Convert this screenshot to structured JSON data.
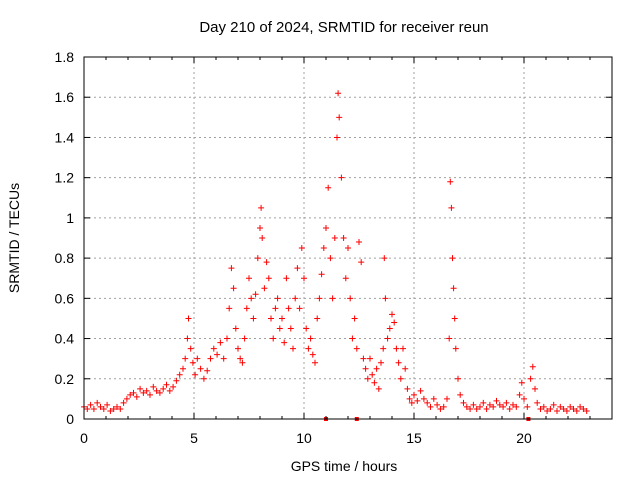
{
  "chart_data": {
    "type": "scatter",
    "title": "Day 210 of 2024, SRMTID for receiver reun",
    "xlabel": "GPS time / hours",
    "ylabel": "SRMTID / TECUs",
    "xlim": [
      0,
      24
    ],
    "ylim": [
      0,
      1.8
    ],
    "xticks": [
      0,
      5,
      10,
      15,
      20
    ],
    "xtick_labels": [
      "0",
      "5",
      "10",
      "15",
      "20"
    ],
    "yticks": [
      0,
      0.2,
      0.4,
      0.6,
      0.8,
      1.0,
      1.2,
      1.4,
      1.6,
      1.8
    ],
    "ytick_labels": [
      "0",
      "0.2",
      "0.4",
      "0.6",
      "0.8",
      "1",
      "1.2",
      "1.4",
      "1.6",
      "1.8"
    ],
    "grid": true,
    "marker": "+",
    "series_color": "#ff0000",
    "data_gaps_x": [
      11.0,
      12.4,
      20.2
    ],
    "series": [
      {
        "name": "SRMTID",
        "points": [
          [
            0.0,
            0.06
          ],
          [
            0.15,
            0.05
          ],
          [
            0.3,
            0.07
          ],
          [
            0.45,
            0.05
          ],
          [
            0.6,
            0.08
          ],
          [
            0.75,
            0.06
          ],
          [
            0.9,
            0.05
          ],
          [
            1.05,
            0.07
          ],
          [
            1.2,
            0.04
          ],
          [
            1.35,
            0.05
          ],
          [
            1.5,
            0.06
          ],
          [
            1.65,
            0.05
          ],
          [
            1.8,
            0.08
          ],
          [
            1.95,
            0.1
          ],
          [
            2.1,
            0.12
          ],
          [
            2.25,
            0.13
          ],
          [
            2.4,
            0.11
          ],
          [
            2.55,
            0.15
          ],
          [
            2.7,
            0.13
          ],
          [
            2.85,
            0.14
          ],
          [
            3.0,
            0.12
          ],
          [
            3.15,
            0.16
          ],
          [
            3.3,
            0.14
          ],
          [
            3.45,
            0.13
          ],
          [
            3.6,
            0.15
          ],
          [
            3.75,
            0.17
          ],
          [
            3.9,
            0.14
          ],
          [
            4.05,
            0.16
          ],
          [
            4.2,
            0.19
          ],
          [
            4.35,
            0.22
          ],
          [
            4.5,
            0.25
          ],
          [
            4.6,
            0.3
          ],
          [
            4.7,
            0.4
          ],
          [
            4.75,
            0.5
          ],
          [
            4.85,
            0.35
          ],
          [
            4.95,
            0.28
          ],
          [
            5.05,
            0.22
          ],
          [
            5.15,
            0.3
          ],
          [
            5.3,
            0.25
          ],
          [
            5.45,
            0.2
          ],
          [
            5.6,
            0.24
          ],
          [
            5.75,
            0.3
          ],
          [
            5.9,
            0.35
          ],
          [
            6.05,
            0.32
          ],
          [
            6.2,
            0.38
          ],
          [
            6.35,
            0.3
          ],
          [
            6.5,
            0.4
          ],
          [
            6.6,
            0.55
          ],
          [
            6.7,
            0.75
          ],
          [
            6.8,
            0.65
          ],
          [
            6.9,
            0.45
          ],
          [
            7.0,
            0.35
          ],
          [
            7.1,
            0.3
          ],
          [
            7.2,
            0.28
          ],
          [
            7.3,
            0.4
          ],
          [
            7.4,
            0.55
          ],
          [
            7.5,
            0.7
          ],
          [
            7.6,
            0.6
          ],
          [
            7.7,
            0.5
          ],
          [
            7.8,
            0.62
          ],
          [
            7.9,
            0.8
          ],
          [
            8.0,
            0.95
          ],
          [
            8.05,
            1.05
          ],
          [
            8.1,
            0.9
          ],
          [
            8.2,
            0.65
          ],
          [
            8.3,
            0.78
          ],
          [
            8.4,
            0.7
          ],
          [
            8.5,
            0.5
          ],
          [
            8.6,
            0.4
          ],
          [
            8.7,
            0.55
          ],
          [
            8.8,
            0.6
          ],
          [
            8.9,
            0.45
          ],
          [
            9.0,
            0.5
          ],
          [
            9.1,
            0.38
          ],
          [
            9.2,
            0.7
          ],
          [
            9.3,
            0.55
          ],
          [
            9.4,
            0.45
          ],
          [
            9.5,
            0.35
          ],
          [
            9.6,
            0.6
          ],
          [
            9.7,
            0.75
          ],
          [
            9.8,
            0.55
          ],
          [
            9.9,
            0.85
          ],
          [
            10.0,
            0.7
          ],
          [
            10.1,
            0.45
          ],
          [
            10.2,
            0.35
          ],
          [
            10.3,
            0.4
          ],
          [
            10.4,
            0.32
          ],
          [
            10.5,
            0.28
          ],
          [
            10.6,
            0.5
          ],
          [
            10.7,
            0.6
          ],
          [
            10.8,
            0.72
          ],
          [
            10.9,
            0.85
          ],
          [
            11.0,
            0.95
          ],
          [
            11.1,
            1.15
          ],
          [
            11.2,
            0.8
          ],
          [
            11.3,
            0.6
          ],
          [
            11.4,
            0.9
          ],
          [
            11.5,
            1.4
          ],
          [
            11.55,
            1.62
          ],
          [
            11.6,
            1.5
          ],
          [
            11.7,
            1.2
          ],
          [
            11.8,
            0.9
          ],
          [
            11.9,
            0.7
          ],
          [
            12.0,
            0.85
          ],
          [
            12.1,
            0.6
          ],
          [
            12.2,
            0.4
          ],
          [
            12.3,
            0.5
          ],
          [
            12.4,
            0.35
          ],
          [
            12.5,
            0.88
          ],
          [
            12.6,
            0.78
          ],
          [
            12.7,
            0.3
          ],
          [
            12.8,
            0.25
          ],
          [
            12.9,
            0.2
          ],
          [
            13.0,
            0.3
          ],
          [
            13.1,
            0.22
          ],
          [
            13.2,
            0.18
          ],
          [
            13.3,
            0.25
          ],
          [
            13.4,
            0.15
          ],
          [
            13.5,
            0.28
          ],
          [
            13.6,
            0.35
          ],
          [
            13.65,
            0.8
          ],
          [
            13.7,
            0.6
          ],
          [
            13.8,
            0.4
          ],
          [
            13.9,
            0.45
          ],
          [
            14.0,
            0.52
          ],
          [
            14.1,
            0.48
          ],
          [
            14.2,
            0.35
          ],
          [
            14.3,
            0.28
          ],
          [
            14.4,
            0.2
          ],
          [
            14.5,
            0.35
          ],
          [
            14.6,
            0.25
          ],
          [
            14.7,
            0.15
          ],
          [
            14.8,
            0.1
          ],
          [
            14.9,
            0.08
          ],
          [
            15.0,
            0.12
          ],
          [
            15.15,
            0.09
          ],
          [
            15.3,
            0.14
          ],
          [
            15.45,
            0.1
          ],
          [
            15.6,
            0.08
          ],
          [
            15.75,
            0.06
          ],
          [
            15.9,
            0.1
          ],
          [
            16.05,
            0.07
          ],
          [
            16.2,
            0.05
          ],
          [
            16.35,
            0.06
          ],
          [
            16.5,
            0.1
          ],
          [
            16.6,
            0.4
          ],
          [
            16.65,
            1.18
          ],
          [
            16.7,
            1.05
          ],
          [
            16.75,
            0.8
          ],
          [
            16.8,
            0.65
          ],
          [
            16.85,
            0.5
          ],
          [
            16.9,
            0.35
          ],
          [
            17.0,
            0.2
          ],
          [
            17.1,
            0.12
          ],
          [
            17.25,
            0.08
          ],
          [
            17.4,
            0.06
          ],
          [
            17.55,
            0.05
          ],
          [
            17.7,
            0.07
          ],
          [
            17.85,
            0.05
          ],
          [
            18.0,
            0.06
          ],
          [
            18.15,
            0.08
          ],
          [
            18.3,
            0.05
          ],
          [
            18.45,
            0.07
          ],
          [
            18.6,
            0.06
          ],
          [
            18.75,
            0.09
          ],
          [
            18.9,
            0.07
          ],
          [
            19.05,
            0.06
          ],
          [
            19.2,
            0.08
          ],
          [
            19.35,
            0.05
          ],
          [
            19.5,
            0.07
          ],
          [
            19.65,
            0.06
          ],
          [
            19.8,
            0.12
          ],
          [
            19.9,
            0.18
          ],
          [
            20.0,
            0.1
          ],
          [
            20.15,
            0.06
          ],
          [
            20.3,
            0.2
          ],
          [
            20.4,
            0.26
          ],
          [
            20.5,
            0.15
          ],
          [
            20.6,
            0.08
          ],
          [
            20.75,
            0.05
          ],
          [
            20.9,
            0.06
          ],
          [
            21.05,
            0.04
          ],
          [
            21.2,
            0.05
          ],
          [
            21.35,
            0.07
          ],
          [
            21.5,
            0.04
          ],
          [
            21.65,
            0.06
          ],
          [
            21.8,
            0.05
          ],
          [
            21.95,
            0.04
          ],
          [
            22.1,
            0.06
          ],
          [
            22.25,
            0.05
          ],
          [
            22.4,
            0.04
          ],
          [
            22.55,
            0.06
          ],
          [
            22.7,
            0.05
          ],
          [
            22.85,
            0.04
          ]
        ]
      }
    ]
  }
}
